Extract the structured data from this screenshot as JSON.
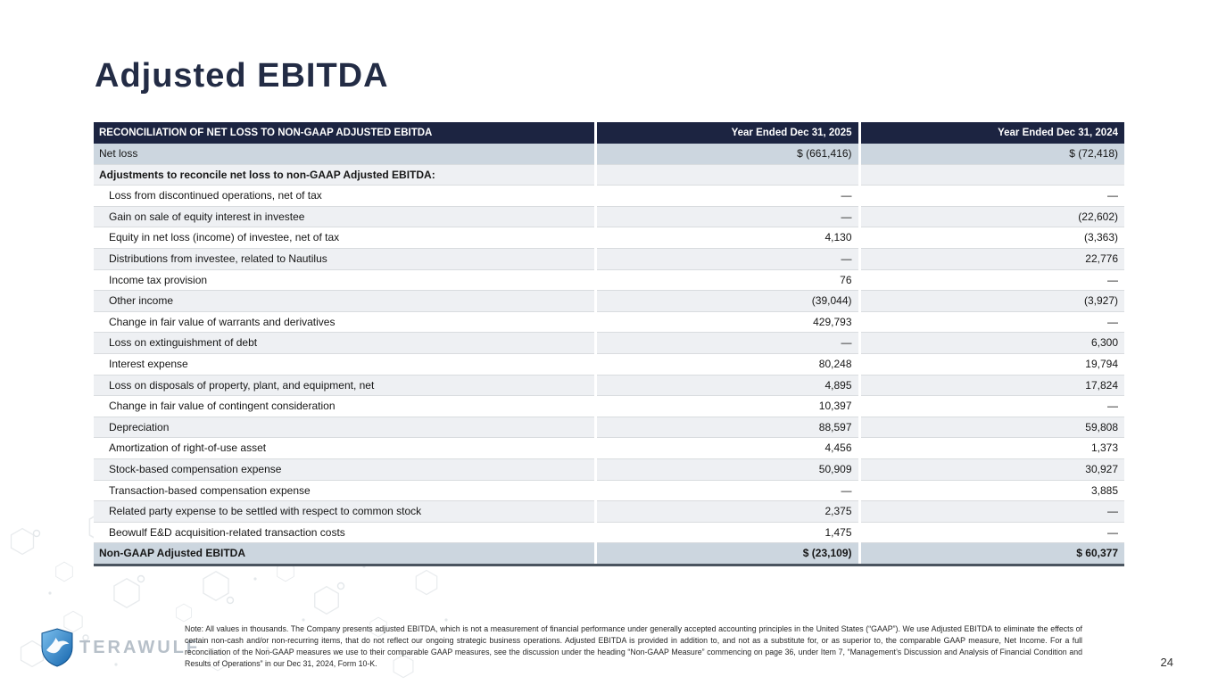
{
  "slide": {
    "title": "Adjusted EBITDA",
    "page_number": "24",
    "logo_text": "TERAWULF",
    "footnote": "Note: All values in thousands. The Company presents adjusted EBITDA, which is not a measurement of financial performance under generally accepted accounting principles in the United States (“GAAP”). We use Adjusted EBITDA to eliminate the effects of certain non-cash and/or non-recurring items, that do not reflect our ongoing strategic business operations. Adjusted EBITDA is provided in addition to, and not as a substitute for, or as superior to, the comparable GAAP measure, Net Income. For a full reconciliation of the Non-GAAP measures we use to their comparable GAAP measures, see the discussion under the heading “Non-GAAP Measure” commencing on page 36, under Item 7, “Management’s Discussion and Analysis of Financial Condition and Results of Operations” in our Dec 31, 2024, Form 10-K."
  },
  "table": {
    "columns": [
      "RECONCILIATION OF NET LOSS TO NON-GAAP ADJUSTED EBITDA",
      "Year Ended Dec 31, 2025",
      "Year Ended Dec 31, 2024"
    ],
    "rows": [
      {
        "label": "Net loss",
        "y2025": "$ (661,416)",
        "y2024": "$ (72,418)",
        "bg": "blue",
        "bold": false,
        "indent": false
      },
      {
        "label": "Adjustments to reconcile net loss to non-GAAP Adjusted EBITDA:",
        "y2025": "",
        "y2024": "",
        "bg": "gray",
        "bold": true,
        "indent": false
      },
      {
        "label": "Loss from discontinued operations, net of tax",
        "y2025": "—",
        "y2024": "—",
        "bg": "white",
        "bold": false,
        "indent": true
      },
      {
        "label": "Gain on sale of equity interest in investee",
        "y2025": "—",
        "y2024": "(22,602)",
        "bg": "gray",
        "bold": false,
        "indent": true
      },
      {
        "label": "Equity in net loss (income) of investee, net of tax",
        "y2025": "4,130",
        "y2024": "(3,363)",
        "bg": "white",
        "bold": false,
        "indent": true
      },
      {
        "label": "Distributions from investee, related to Nautilus",
        "y2025": "—",
        "y2024": "22,776",
        "bg": "gray",
        "bold": false,
        "indent": true
      },
      {
        "label": "Income tax provision",
        "y2025": "76",
        "y2024": "—",
        "bg": "white",
        "bold": false,
        "indent": true
      },
      {
        "label": "Other income",
        "y2025": "(39,044)",
        "y2024": "(3,927)",
        "bg": "gray",
        "bold": false,
        "indent": true
      },
      {
        "label": "Change in fair value of warrants and derivatives",
        "y2025": "429,793",
        "y2024": "—",
        "bg": "white",
        "bold": false,
        "indent": true
      },
      {
        "label": "Loss on extinguishment of debt",
        "y2025": "—",
        "y2024": "6,300",
        "bg": "gray",
        "bold": false,
        "indent": true
      },
      {
        "label": "Interest expense",
        "y2025": "80,248",
        "y2024": "19,794",
        "bg": "white",
        "bold": false,
        "indent": true
      },
      {
        "label": "Loss on disposals of property, plant, and equipment, net",
        "y2025": "4,895",
        "y2024": "17,824",
        "bg": "gray",
        "bold": false,
        "indent": true
      },
      {
        "label": "Change in fair value of contingent consideration",
        "y2025": "10,397",
        "y2024": "—",
        "bg": "white",
        "bold": false,
        "indent": true
      },
      {
        "label": "Depreciation",
        "y2025": "88,597",
        "y2024": "59,808",
        "bg": "gray",
        "bold": false,
        "indent": true
      },
      {
        "label": "Amortization of right-of-use asset",
        "y2025": "4,456",
        "y2024": "1,373",
        "bg": "white",
        "bold": false,
        "indent": true
      },
      {
        "label": "Stock-based compensation expense",
        "y2025": "50,909",
        "y2024": "30,927",
        "bg": "gray",
        "bold": false,
        "indent": true
      },
      {
        "label": "Transaction-based compensation expense",
        "y2025": "—",
        "y2024": "3,885",
        "bg": "white",
        "bold": false,
        "indent": true
      },
      {
        "label": "Related party expense to be settled with respect to common stock",
        "y2025": "2,375",
        "y2024": "—",
        "bg": "gray",
        "bold": false,
        "indent": true
      },
      {
        "label": "Beowulf E&D acquisition-related transaction costs",
        "y2025": "1,475",
        "y2024": "—",
        "bg": "white",
        "bold": false,
        "indent": true
      },
      {
        "label": "Non-GAAP Adjusted EBITDA",
        "y2025": "$ (23,109)",
        "y2024": "$ 60,377",
        "bg": "blue",
        "bold": true,
        "indent": false,
        "total": true
      }
    ]
  },
  "colors": {
    "header_bg": "#1c2441",
    "highlight_row": "#ccd6df",
    "stripe_row": "#eef0f3",
    "row_border": "#d9dcdf",
    "total_border": "#4a545f",
    "title_text": "#232c45",
    "logo_blue": "#2a7cc4",
    "logo_text": "#b7c0c9"
  }
}
